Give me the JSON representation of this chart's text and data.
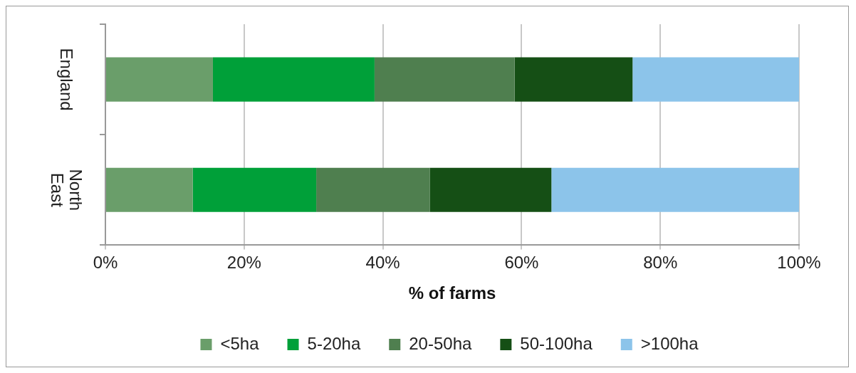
{
  "chart_data": {
    "type": "bar",
    "orientation": "horizontal",
    "stacked": true,
    "xlabel": "% of farms",
    "categories": [
      "England",
      "North East"
    ],
    "series": [
      {
        "name": "<5ha",
        "color": "#6a9e6a",
        "values": [
          15.5,
          12.6
        ]
      },
      {
        "name": "5-20ha",
        "color": "#00a039",
        "values": [
          23.3,
          17.8
        ]
      },
      {
        "name": "20-50ha",
        "color": "#4f7f4f",
        "values": [
          20.2,
          16.4
        ]
      },
      {
        "name": "50-100ha",
        "color": "#154f15",
        "values": [
          17.0,
          17.5
        ]
      },
      {
        "name": ">100ha",
        "color": "#8cc4ea",
        "values": [
          24.0,
          35.7
        ]
      }
    ],
    "xlim": [
      0,
      100
    ],
    "xticks": [
      {
        "value": 0,
        "label": "0%"
      },
      {
        "value": 20,
        "label": "20%"
      },
      {
        "value": 40,
        "label": "40%"
      },
      {
        "value": 60,
        "label": "60%"
      },
      {
        "value": 80,
        "label": "80%"
      },
      {
        "value": 100,
        "label": "100%"
      }
    ],
    "grid": "x",
    "legend": "bottom"
  }
}
